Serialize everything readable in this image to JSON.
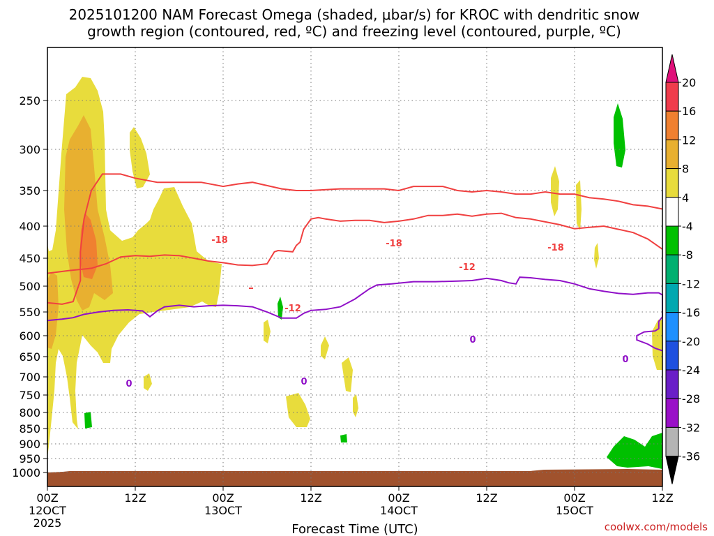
{
  "chart_data": {
    "type": "heatmap",
    "title_line1": "2025101200 NAM Forecast Omega (shaded, μbar/s) for KROC with dendritic snow",
    "title_line2": "growth region (contoured, red, ºC) and freezing level (contoured, purple, ºC)",
    "xlabel": "Forecast Time (UTC)",
    "credit": "coolwx.com/models",
    "x_ticks": [
      {
        "hour": 0,
        "line1": "00Z",
        "line2": "12OCT",
        "line3": "2025"
      },
      {
        "hour": 12,
        "line1": "12Z",
        "line2": "",
        "line3": ""
      },
      {
        "hour": 24,
        "line1": "00Z",
        "line2": "13OCT",
        "line3": ""
      },
      {
        "hour": 36,
        "line1": "12Z",
        "line2": "",
        "line3": ""
      },
      {
        "hour": 48,
        "line1": "00Z",
        "line2": "14OCT",
        "line3": ""
      },
      {
        "hour": 60,
        "line1": "12Z",
        "line2": "",
        "line3": ""
      },
      {
        "hour": 72,
        "line1": "00Z",
        "line2": "15OCT",
        "line3": ""
      },
      {
        "hour": 84,
        "line1": "12Z",
        "line2": "",
        "line3": ""
      }
    ],
    "y_ticks": [
      "250",
      "300",
      "350",
      "400",
      "450",
      "500",
      "550",
      "600",
      "650",
      "700",
      "750",
      "800",
      "850",
      "900",
      "950",
      "1000"
    ],
    "colorbar": {
      "labels": [
        "20",
        "16",
        "12",
        "8",
        "4",
        "-4",
        "-8",
        "-12",
        "-16",
        "-20",
        "-24",
        "-28",
        "-32",
        "-36"
      ],
      "colors": [
        "#f03c4c",
        "#f08030",
        "#e8b030",
        "#e8dc3c",
        "#ffffff",
        "#00c000",
        "#00b070",
        "#00a8b0",
        "#1e90ff",
        "#1e50e0",
        "#6a1ec8",
        "#9a10c8",
        "#b4b4b4"
      ],
      "top_color": "#e0107a",
      "bottom_color": "#000000"
    },
    "contour_labels": {
      "dgz_cold": "-18",
      "dgz_warm": "-12",
      "freezing": "0"
    },
    "contour_colors": {
      "dgz": "#f04040",
      "freezing": "#9010c8"
    },
    "shading_colors": {
      "4_8": "#e8dc3c",
      "8_12": "#e8b030",
      "12_16": "#f08030",
      "green": "#00c000",
      "ground": "#a0522d"
    },
    "dgz_cold": [
      [
        0,
        532
      ],
      [
        2,
        535
      ],
      [
        3.5,
        530
      ],
      [
        4.5,
        490
      ],
      [
        4.5,
        440
      ],
      [
        5,
        390
      ],
      [
        6,
        350
      ],
      [
        7.5,
        330
      ],
      [
        10,
        330
      ],
      [
        12,
        335
      ],
      [
        15,
        340
      ],
      [
        18,
        340
      ],
      [
        21,
        340
      ],
      [
        24,
        345
      ],
      [
        26,
        342
      ],
      [
        28,
        340
      ],
      [
        30,
        344
      ],
      [
        32,
        348
      ],
      [
        34,
        350
      ],
      [
        36,
        350
      ],
      [
        38,
        349
      ],
      [
        40,
        348
      ],
      [
        42,
        348
      ],
      [
        44,
        348
      ],
      [
        46,
        348
      ],
      [
        48,
        350
      ],
      [
        50,
        345
      ],
      [
        52,
        345
      ],
      [
        54,
        345
      ],
      [
        56,
        350
      ],
      [
        58,
        352
      ],
      [
        60,
        350
      ],
      [
        62,
        352
      ],
      [
        64,
        355
      ],
      [
        66,
        355
      ],
      [
        68,
        352
      ],
      [
        70,
        355
      ],
      [
        72,
        355
      ],
      [
        74,
        360
      ],
      [
        76,
        362
      ],
      [
        78,
        365
      ],
      [
        80,
        370
      ],
      [
        82,
        372
      ],
      [
        84,
        376
      ]
    ],
    "dgz_warm": [
      [
        0,
        477
      ],
      [
        3,
        472
      ],
      [
        6,
        468
      ],
      [
        8,
        460
      ],
      [
        10,
        448
      ],
      [
        12,
        446
      ],
      [
        14,
        447
      ],
      [
        16,
        445
      ],
      [
        18,
        446
      ],
      [
        20,
        450
      ],
      [
        22,
        455
      ],
      [
        24,
        458
      ],
      [
        26,
        462
      ],
      [
        28,
        463
      ],
      [
        30,
        460
      ],
      [
        31,
        440
      ],
      [
        31.5,
        438
      ],
      [
        33.5,
        440
      ],
      [
        34,
        430
      ],
      [
        34.5,
        425
      ],
      [
        35,
        405
      ],
      [
        36,
        390
      ],
      [
        37,
        388
      ],
      [
        38,
        390
      ],
      [
        40,
        393
      ],
      [
        42,
        392
      ],
      [
        44,
        392
      ],
      [
        46,
        395
      ],
      [
        48,
        393
      ],
      [
        50,
        390
      ],
      [
        52,
        385
      ],
      [
        54,
        385
      ],
      [
        56,
        383
      ],
      [
        58,
        386
      ],
      [
        60,
        383
      ],
      [
        62,
        382
      ],
      [
        64,
        388
      ],
      [
        66,
        390
      ],
      [
        68,
        394
      ],
      [
        70,
        398
      ],
      [
        72,
        404
      ],
      [
        74,
        402
      ],
      [
        76,
        400
      ],
      [
        78,
        405
      ],
      [
        80,
        410
      ],
      [
        82,
        420
      ],
      [
        84,
        436
      ]
    ],
    "freezing": [
      [
        0,
        568
      ],
      [
        2,
        565
      ],
      [
        3.5,
        562
      ],
      [
        5,
        555
      ],
      [
        7,
        550
      ],
      [
        9,
        547
      ],
      [
        11,
        546
      ],
      [
        13,
        548
      ],
      [
        14,
        560
      ],
      [
        15,
        548
      ],
      [
        16,
        540
      ],
      [
        18,
        537
      ],
      [
        20,
        540
      ],
      [
        22,
        538
      ],
      [
        24,
        537
      ],
      [
        26,
        538
      ],
      [
        28,
        540
      ],
      [
        30,
        550
      ],
      [
        32,
        563
      ],
      [
        34,
        563
      ],
      [
        35,
        553
      ],
      [
        36,
        547
      ],
      [
        38,
        545
      ],
      [
        40,
        540
      ],
      [
        42,
        525
      ],
      [
        43,
        515
      ],
      [
        44,
        505
      ],
      [
        45,
        498
      ],
      [
        47,
        496
      ],
      [
        50,
        492
      ],
      [
        53,
        492
      ],
      [
        56,
        491
      ],
      [
        58,
        490
      ],
      [
        60,
        486
      ],
      [
        61,
        488
      ],
      [
        62,
        490
      ],
      [
        63,
        494
      ],
      [
        64,
        496
      ],
      [
        64.5,
        484
      ],
      [
        66,
        485
      ],
      [
        68,
        488
      ],
      [
        70,
        490
      ],
      [
        72,
        496
      ],
      [
        74,
        505
      ],
      [
        76,
        510
      ],
      [
        78,
        514
      ],
      [
        80,
        516
      ],
      [
        82,
        513
      ],
      [
        83.5,
        513
      ],
      [
        84,
        517
      ],
      [
        84,
        560
      ],
      [
        83.5,
        570
      ],
      [
        83.5,
        585
      ],
      [
        83,
        590
      ],
      [
        81.5,
        592
      ],
      [
        80.5,
        600
      ],
      [
        80.5,
        610
      ],
      [
        82,
        620
      ],
      [
        83,
        630
      ],
      [
        84,
        636
      ]
    ]
  }
}
